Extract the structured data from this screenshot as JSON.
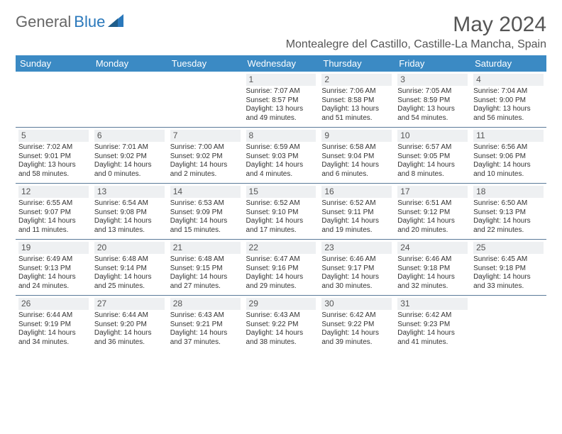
{
  "brand": {
    "part1": "General",
    "part2": "Blue"
  },
  "title": "May 2024",
  "location": "Montealegre del Castillo, Castille-La Mancha, Spain",
  "colors": {
    "header_bg": "#3b8ac4",
    "header_text": "#ffffff",
    "daynum_bg": "#eef0f2",
    "rule": "#5a7a99",
    "brand_blue": "#2a78bb",
    "text": "#333333"
  },
  "daysOfWeek": [
    "Sunday",
    "Monday",
    "Tuesday",
    "Wednesday",
    "Thursday",
    "Friday",
    "Saturday"
  ],
  "layout": {
    "columns": 7,
    "rows": 5,
    "firstDayOffset": 3,
    "daysInMonth": 31
  },
  "days": [
    {
      "n": 1,
      "sunrise": "7:07 AM",
      "sunset": "8:57 PM",
      "daylight": "13 hours and 49 minutes."
    },
    {
      "n": 2,
      "sunrise": "7:06 AM",
      "sunset": "8:58 PM",
      "daylight": "13 hours and 51 minutes."
    },
    {
      "n": 3,
      "sunrise": "7:05 AM",
      "sunset": "8:59 PM",
      "daylight": "13 hours and 54 minutes."
    },
    {
      "n": 4,
      "sunrise": "7:04 AM",
      "sunset": "9:00 PM",
      "daylight": "13 hours and 56 minutes."
    },
    {
      "n": 5,
      "sunrise": "7:02 AM",
      "sunset": "9:01 PM",
      "daylight": "13 hours and 58 minutes."
    },
    {
      "n": 6,
      "sunrise": "7:01 AM",
      "sunset": "9:02 PM",
      "daylight": "14 hours and 0 minutes."
    },
    {
      "n": 7,
      "sunrise": "7:00 AM",
      "sunset": "9:02 PM",
      "daylight": "14 hours and 2 minutes."
    },
    {
      "n": 8,
      "sunrise": "6:59 AM",
      "sunset": "9:03 PM",
      "daylight": "14 hours and 4 minutes."
    },
    {
      "n": 9,
      "sunrise": "6:58 AM",
      "sunset": "9:04 PM",
      "daylight": "14 hours and 6 minutes."
    },
    {
      "n": 10,
      "sunrise": "6:57 AM",
      "sunset": "9:05 PM",
      "daylight": "14 hours and 8 minutes."
    },
    {
      "n": 11,
      "sunrise": "6:56 AM",
      "sunset": "9:06 PM",
      "daylight": "14 hours and 10 minutes."
    },
    {
      "n": 12,
      "sunrise": "6:55 AM",
      "sunset": "9:07 PM",
      "daylight": "14 hours and 11 minutes."
    },
    {
      "n": 13,
      "sunrise": "6:54 AM",
      "sunset": "9:08 PM",
      "daylight": "14 hours and 13 minutes."
    },
    {
      "n": 14,
      "sunrise": "6:53 AM",
      "sunset": "9:09 PM",
      "daylight": "14 hours and 15 minutes."
    },
    {
      "n": 15,
      "sunrise": "6:52 AM",
      "sunset": "9:10 PM",
      "daylight": "14 hours and 17 minutes."
    },
    {
      "n": 16,
      "sunrise": "6:52 AM",
      "sunset": "9:11 PM",
      "daylight": "14 hours and 19 minutes."
    },
    {
      "n": 17,
      "sunrise": "6:51 AM",
      "sunset": "9:12 PM",
      "daylight": "14 hours and 20 minutes."
    },
    {
      "n": 18,
      "sunrise": "6:50 AM",
      "sunset": "9:13 PM",
      "daylight": "14 hours and 22 minutes."
    },
    {
      "n": 19,
      "sunrise": "6:49 AM",
      "sunset": "9:13 PM",
      "daylight": "14 hours and 24 minutes."
    },
    {
      "n": 20,
      "sunrise": "6:48 AM",
      "sunset": "9:14 PM",
      "daylight": "14 hours and 25 minutes."
    },
    {
      "n": 21,
      "sunrise": "6:48 AM",
      "sunset": "9:15 PM",
      "daylight": "14 hours and 27 minutes."
    },
    {
      "n": 22,
      "sunrise": "6:47 AM",
      "sunset": "9:16 PM",
      "daylight": "14 hours and 29 minutes."
    },
    {
      "n": 23,
      "sunrise": "6:46 AM",
      "sunset": "9:17 PM",
      "daylight": "14 hours and 30 minutes."
    },
    {
      "n": 24,
      "sunrise": "6:46 AM",
      "sunset": "9:18 PM",
      "daylight": "14 hours and 32 minutes."
    },
    {
      "n": 25,
      "sunrise": "6:45 AM",
      "sunset": "9:18 PM",
      "daylight": "14 hours and 33 minutes."
    },
    {
      "n": 26,
      "sunrise": "6:44 AM",
      "sunset": "9:19 PM",
      "daylight": "14 hours and 34 minutes."
    },
    {
      "n": 27,
      "sunrise": "6:44 AM",
      "sunset": "9:20 PM",
      "daylight": "14 hours and 36 minutes."
    },
    {
      "n": 28,
      "sunrise": "6:43 AM",
      "sunset": "9:21 PM",
      "daylight": "14 hours and 37 minutes."
    },
    {
      "n": 29,
      "sunrise": "6:43 AM",
      "sunset": "9:22 PM",
      "daylight": "14 hours and 38 minutes."
    },
    {
      "n": 30,
      "sunrise": "6:42 AM",
      "sunset": "9:22 PM",
      "daylight": "14 hours and 39 minutes."
    },
    {
      "n": 31,
      "sunrise": "6:42 AM",
      "sunset": "9:23 PM",
      "daylight": "14 hours and 41 minutes."
    }
  ],
  "labels": {
    "sunrise": "Sunrise:",
    "sunset": "Sunset:",
    "daylight": "Daylight:"
  }
}
